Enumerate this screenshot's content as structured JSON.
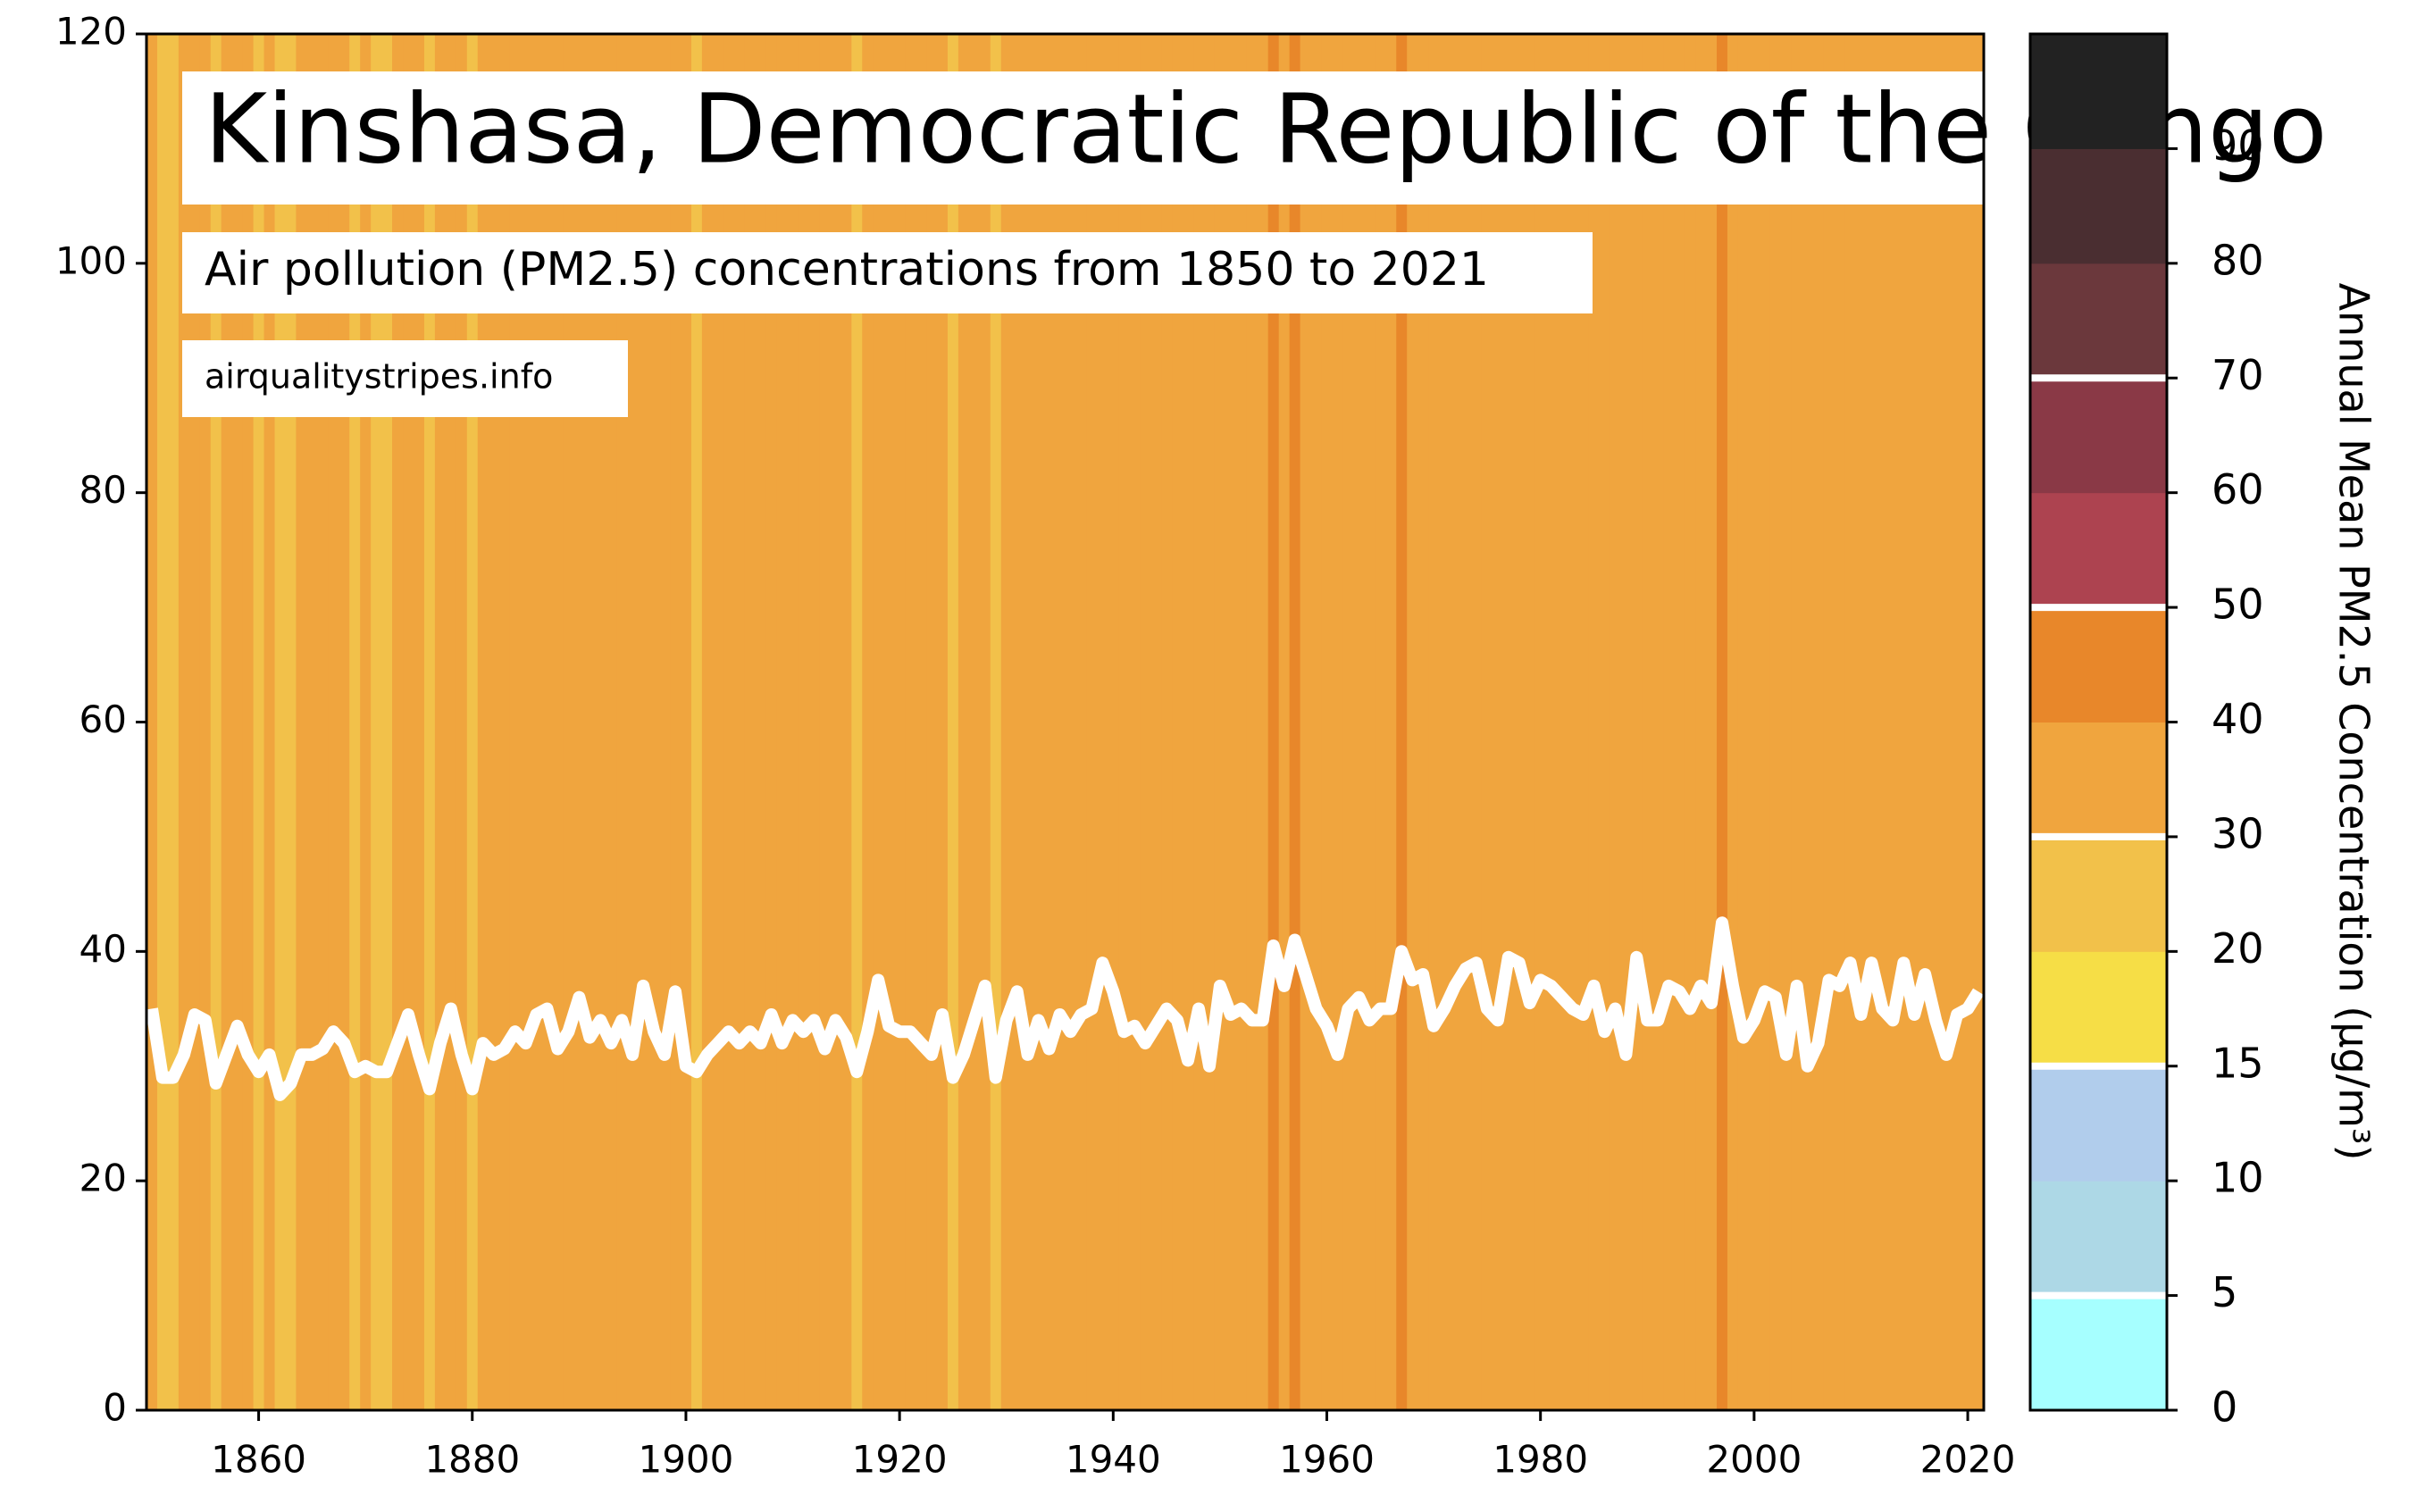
{
  "chart_data": {
    "type": "stripes-line",
    "title": "Kinshasa, Democratic Republic of the Congo",
    "subtitle": "Air pollution (PM2.5) concentrations from 1850 to 2021",
    "source": "airqualitystripes.info",
    "colorbar_label": "Annual Mean PM2.5 Concentration (µg/m³)",
    "x": [
      1850,
      1851,
      1852,
      1853,
      1854,
      1855,
      1856,
      1857,
      1858,
      1859,
      1860,
      1861,
      1862,
      1863,
      1864,
      1865,
      1866,
      1867,
      1868,
      1869,
      1870,
      1871,
      1872,
      1873,
      1874,
      1875,
      1876,
      1877,
      1878,
      1879,
      1880,
      1881,
      1882,
      1883,
      1884,
      1885,
      1886,
      1887,
      1888,
      1889,
      1890,
      1891,
      1892,
      1893,
      1894,
      1895,
      1896,
      1897,
      1898,
      1899,
      1900,
      1901,
      1902,
      1903,
      1904,
      1905,
      1906,
      1907,
      1908,
      1909,
      1910,
      1911,
      1912,
      1913,
      1914,
      1915,
      1916,
      1917,
      1918,
      1919,
      1920,
      1921,
      1922,
      1923,
      1924,
      1925,
      1926,
      1927,
      1928,
      1929,
      1930,
      1931,
      1932,
      1933,
      1934,
      1935,
      1936,
      1937,
      1938,
      1939,
      1940,
      1941,
      1942,
      1943,
      1944,
      1945,
      1946,
      1947,
      1948,
      1949,
      1950,
      1951,
      1952,
      1953,
      1954,
      1955,
      1956,
      1957,
      1958,
      1959,
      1960,
      1961,
      1962,
      1963,
      1964,
      1965,
      1966,
      1967,
      1968,
      1969,
      1970,
      1971,
      1972,
      1973,
      1974,
      1975,
      1976,
      1977,
      1978,
      1979,
      1980,
      1981,
      1982,
      1983,
      1984,
      1985,
      1986,
      1987,
      1988,
      1989,
      1990,
      1991,
      1992,
      1993,
      1994,
      1995,
      1996,
      1997,
      1998,
      1999,
      2000,
      2001,
      2002,
      2003,
      2004,
      2005,
      2006,
      2007,
      2008,
      2009,
      2010,
      2011,
      2012,
      2013,
      2014,
      2015,
      2016,
      2017,
      2018,
      2019,
      2020,
      2021
    ],
    "values": [
      35,
      29,
      29,
      31,
      34.5,
      34,
      28.5,
      31,
      33.5,
      31,
      29.5,
      31,
      27.5,
      28.5,
      31,
      31,
      31.5,
      33,
      32,
      29.5,
      30,
      29.5,
      29.5,
      32,
      34.5,
      31,
      28,
      32,
      35,
      31,
      28,
      32,
      31,
      31.5,
      33,
      32,
      34.5,
      35,
      31.5,
      33,
      36,
      32.5,
      34,
      32,
      34,
      31,
      37,
      33,
      31,
      36.5,
      30,
      29.5,
      31,
      32,
      33,
      32,
      33,
      32,
      34.5,
      32,
      34,
      33,
      34,
      31.5,
      34,
      32.5,
      29.5,
      33,
      37.5,
      33.5,
      33,
      33,
      32,
      31,
      34.5,
      29,
      31,
      34,
      37,
      29,
      34,
      36.5,
      31,
      34,
      31.5,
      34.5,
      33,
      34.5,
      35,
      39,
      36.5,
      33,
      33.5,
      32,
      33.5,
      35,
      34,
      30.5,
      35,
      30,
      37,
      34.5,
      35,
      34,
      34,
      40.5,
      37,
      41,
      38,
      35,
      33.5,
      31,
      35,
      36,
      34,
      35,
      35,
      40,
      37.5,
      38,
      33.5,
      35,
      37,
      38.5,
      39,
      35,
      34,
      39.5,
      39,
      35.5,
      37.5,
      37,
      36,
      35,
      34.5,
      37,
      33,
      35,
      31,
      39.5,
      34,
      34,
      37,
      36.5,
      35,
      37,
      35.5,
      42.5,
      37,
      32.5,
      34,
      36.5,
      36,
      31,
      37,
      30,
      32,
      37.5,
      37,
      39,
      34.5,
      39,
      35,
      34,
      39,
      34.5,
      38,
      34,
      31,
      34.5,
      35,
      36.5
    ],
    "line_color": "#ffffff",
    "xlim": [
      1849.5,
      2021.5
    ],
    "xticks": [
      1860,
      1880,
      1900,
      1920,
      1940,
      1960,
      1980,
      2000,
      2020
    ],
    "ylim": [
      0,
      120
    ],
    "yticks": [
      0,
      20,
      40,
      60,
      80,
      100,
      120
    ],
    "colorbar_ticks": [
      0,
      5,
      10,
      15,
      20,
      30,
      40,
      50,
      60,
      70,
      80,
      90
    ],
    "colorbar_colors": [
      "#a6ffff",
      "#add8e6",
      "#b1cdec",
      "#f6de46",
      "#f2c14a",
      "#f0a53e",
      "#e8872a",
      "#ad4350",
      "#8a3946",
      "#6b383c",
      "#4a2e31",
      "#222222"
    ],
    "colorbar_marker_lines": [
      5,
      15,
      30,
      50,
      70
    ]
  }
}
